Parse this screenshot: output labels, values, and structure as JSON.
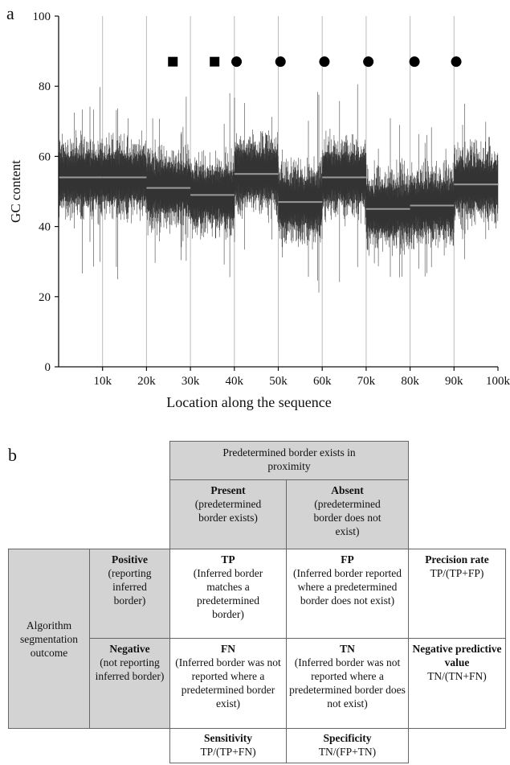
{
  "panel_a_label": "a",
  "panel_b_label": "b",
  "chart_data": {
    "type": "line",
    "title": "",
    "xlabel": "Location along the sequence",
    "ylabel": "GC content",
    "xlim": [
      0,
      100000
    ],
    "ylim": [
      0,
      100
    ],
    "x_tick_labels": [
      "10k",
      "20k",
      "30k",
      "40k",
      "50k",
      "60k",
      "70k",
      "80k",
      "90k",
      "100k"
    ],
    "x_ticks": [
      10000,
      20000,
      30000,
      40000,
      50000,
      60000,
      70000,
      80000,
      90000,
      100000
    ],
    "y_ticks": [
      0,
      20,
      40,
      60,
      80,
      100
    ],
    "y_tick_labels": [
      "0",
      "20",
      "40",
      "60",
      "80",
      "100"
    ],
    "vertical_gridlines": [
      10000,
      20000,
      30000,
      40000,
      50000,
      60000,
      70000,
      80000,
      90000
    ],
    "segments": [
      {
        "x_start": 0,
        "x_end": 10000,
        "mean": 54
      },
      {
        "x_start": 10000,
        "x_end": 20000,
        "mean": 54
      },
      {
        "x_start": 20000,
        "x_end": 30000,
        "mean": 51
      },
      {
        "x_start": 30000,
        "x_end": 40000,
        "mean": 49
      },
      {
        "x_start": 40000,
        "x_end": 50000,
        "mean": 55
      },
      {
        "x_start": 50000,
        "x_end": 60000,
        "mean": 47
      },
      {
        "x_start": 60000,
        "x_end": 70000,
        "mean": 54
      },
      {
        "x_start": 70000,
        "x_end": 80000,
        "mean": 45
      },
      {
        "x_start": 80000,
        "x_end": 90000,
        "mean": 46
      },
      {
        "x_start": 90000,
        "x_end": 100000,
        "mean": 52
      }
    ],
    "square_markers_x": [
      26000,
      35500
    ],
    "circle_markers_x": [
      40500,
      50500,
      60500,
      70500,
      81000,
      90500
    ],
    "marker_y": 87
  },
  "table": {
    "header_top": "Predetermined border exists in  proximity",
    "present_title": "Present",
    "present_desc": "(predetermined border exists)",
    "absent_title": "Absent",
    "absent_desc": "(predetermined border does not exist)",
    "outcome_label": "Algorithm segmentation outcome",
    "positive_title": "Positive",
    "positive_desc": "(reporting inferred border)",
    "negative_title": "Negative",
    "negative_desc": "(not reporting inferred border)",
    "tp_title": "TP",
    "tp_desc": "(Inferred border matches a predetermined border)",
    "fp_title": "FP",
    "fp_desc": "(Inferred border reported where a predetermined border does not exist)",
    "fn_title": "FN",
    "fn_desc": "(Inferred border was not reported where a predetermined border exist)",
    "tn_title": "TN",
    "tn_desc": "(Inferred border was not reported where a predetermined border does not exist)",
    "precision_title": "Precision rate",
    "precision_formula": "TP/(TP+FP)",
    "npv_title": "Negative predictive value",
    "npv_formula": "TN/(TN+FN)",
    "sensitivity_title": "Sensitivity",
    "sensitivity_formula": "TP/(TP+FN)",
    "specificity_title": "Specificity",
    "specificity_formula": "TN/(FP+TN)"
  }
}
